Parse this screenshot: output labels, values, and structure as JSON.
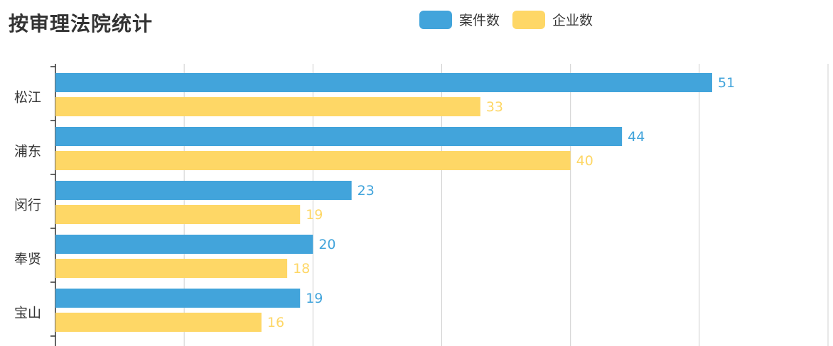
{
  "chart_data": {
    "type": "bar",
    "orientation": "horizontal",
    "title": "按审理法院统计",
    "categories": [
      "松江",
      "浦东",
      "闵行",
      "奉贤",
      "宝山"
    ],
    "series": [
      {
        "name": "案件数",
        "color": "#42a4db",
        "values": [
          51,
          44,
          23,
          20,
          19
        ]
      },
      {
        "name": "企业数",
        "color": "#fed766",
        "values": [
          33,
          40,
          19,
          18,
          16
        ]
      }
    ],
    "xlim": [
      0,
      60
    ],
    "x_gridlines": [
      0,
      10,
      20,
      30,
      40,
      50,
      60
    ],
    "xlabel": "",
    "ylabel": "",
    "legend_position": "top"
  }
}
